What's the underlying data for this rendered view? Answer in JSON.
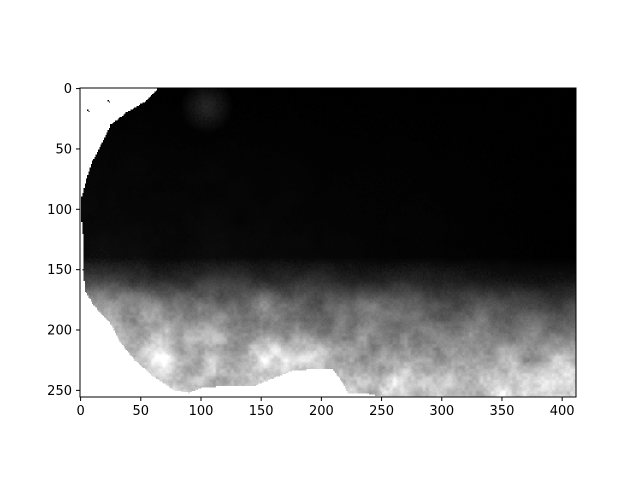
{
  "chart_data": {
    "type": "heatmap",
    "colormap": "gray",
    "title": "",
    "xlabel": "",
    "ylabel": "",
    "image_width": 412,
    "image_height": 256,
    "xlim": [
      -0.5,
      411.5
    ],
    "ylim": [
      255.5,
      -0.5
    ],
    "y_axis_inverted": true,
    "x_ticks": [
      0,
      50,
      100,
      150,
      200,
      250,
      300,
      350,
      400
    ],
    "y_ticks": [
      0,
      50,
      100,
      150,
      200,
      250
    ],
    "x_tick_labels": [
      "0",
      "50",
      "100",
      "150",
      "200",
      "250",
      "300",
      "350",
      "400"
    ],
    "y_tick_labels": [
      "0",
      "50",
      "100",
      "150",
      "200",
      "250"
    ],
    "masked_region_color": "#ffffff",
    "land_mask_boundary": [
      {
        "row": 0,
        "col": 64
      },
      {
        "row": 10,
        "col": 55
      },
      {
        "row": 20,
        "col": 38
      },
      {
        "row": 30,
        "col": 25
      },
      {
        "row": 45,
        "col": 18
      },
      {
        "row": 60,
        "col": 10
      },
      {
        "row": 75,
        "col": 5
      },
      {
        "row": 90,
        "col": 1
      },
      {
        "row": 110,
        "col": 1
      },
      {
        "row": 130,
        "col": 3
      },
      {
        "row": 150,
        "col": 2
      },
      {
        "row": 168,
        "col": 4
      },
      {
        "row": 178,
        "col": 10
      },
      {
        "row": 183,
        "col": 14
      },
      {
        "row": 195,
        "col": 25
      },
      {
        "row": 210,
        "col": 33
      },
      {
        "row": 225,
        "col": 45
      },
      {
        "row": 238,
        "col": 60
      },
      {
        "row": 250,
        "col": 78
      },
      {
        "row": 252,
        "col": 90
      }
    ],
    "bottom_mask_boundary": [
      {
        "col": 90,
        "row": 252
      },
      {
        "col": 100,
        "row": 248
      },
      {
        "col": 125,
        "row": 246
      },
      {
        "col": 145,
        "row": 246
      },
      {
        "col": 160,
        "row": 240
      },
      {
        "col": 175,
        "row": 234
      },
      {
        "col": 200,
        "row": 232
      },
      {
        "col": 210,
        "row": 233
      },
      {
        "col": 218,
        "row": 244
      },
      {
        "col": 222,
        "row": 252
      },
      {
        "col": 240,
        "row": 253
      },
      {
        "col": 250,
        "row": 255
      }
    ],
    "intensity_profile": {
      "description": "normalized brightness 0 (black) to 1 (white) by row band",
      "rows": [
        0,
        140,
        160,
        180,
        200,
        220,
        240,
        255
      ],
      "left_half": [
        0.0,
        0.05,
        0.25,
        0.55,
        0.75,
        0.85,
        0.85,
        0.85
      ],
      "right_half": [
        0.0,
        0.0,
        0.08,
        0.25,
        0.4,
        0.6,
        0.75,
        0.8
      ]
    },
    "bright_blob_near_top": {
      "row": 15,
      "col": 105,
      "intensity": 0.15
    }
  }
}
